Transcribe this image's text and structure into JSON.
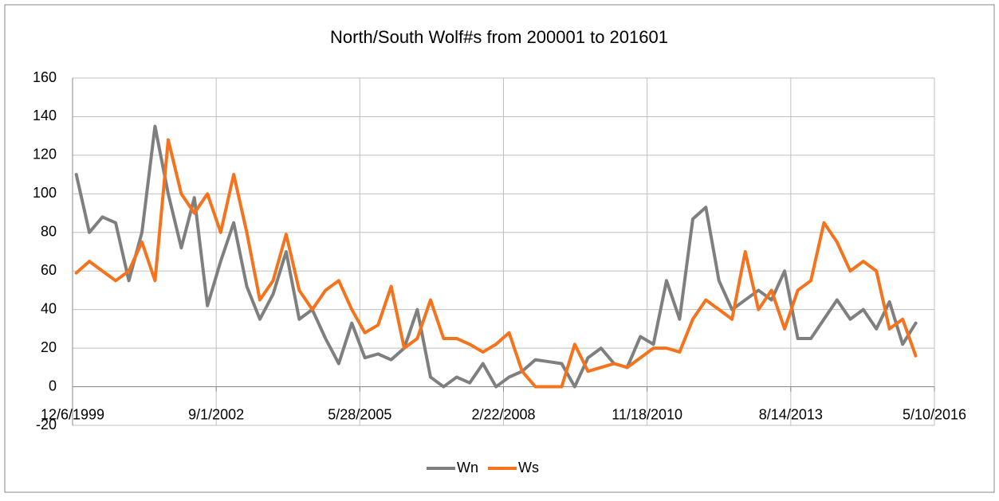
{
  "chart_data": {
    "type": "line",
    "title": "North/South Wolf#s from 200001 to 201601",
    "x": [
      36526,
      36617,
      36708,
      36800,
      36892,
      36983,
      37074,
      37166,
      37257,
      37348,
      37439,
      37531,
      37622,
      37713,
      37804,
      37896,
      37987,
      38078,
      38169,
      38261,
      38353,
      38444,
      38535,
      38627,
      38718,
      38809,
      38900,
      38992,
      39083,
      39174,
      39265,
      39357,
      39448,
      39539,
      39630,
      39722,
      39814,
      39905,
      39996,
      40088,
      40179,
      40270,
      40361,
      40453,
      40544,
      40635,
      40726,
      40818,
      40909,
      41000,
      41091,
      41183,
      41275,
      41366,
      41457,
      41549,
      41640,
      41731,
      41822,
      41914,
      42005,
      42096,
      42187,
      42279,
      42370
    ],
    "series": [
      {
        "name": "Wn",
        "color": "#7f7f7f",
        "values": [
          110,
          80,
          88,
          85,
          55,
          80,
          135,
          100,
          72,
          98,
          42,
          65,
          85,
          52,
          35,
          48,
          70,
          35,
          40,
          25,
          12,
          33,
          15,
          17,
          14,
          20,
          40,
          5,
          0,
          5,
          2,
          12,
          0,
          5,
          8,
          14,
          13,
          12,
          0,
          15,
          20,
          12,
          10,
          26,
          22,
          55,
          35,
          87,
          93,
          55,
          40,
          45,
          50,
          45,
          60,
          25,
          25,
          35,
          45,
          35,
          40,
          30,
          44,
          22,
          33
        ]
      },
      {
        "name": "Ws",
        "color": "#f5731c",
        "values": [
          59,
          65,
          60,
          55,
          60,
          75,
          55,
          128,
          100,
          90,
          100,
          80,
          110,
          80,
          45,
          55,
          79,
          50,
          40,
          50,
          55,
          40,
          28,
          32,
          52,
          20,
          25,
          45,
          25,
          25,
          22,
          18,
          22,
          28,
          8,
          0,
          0,
          0,
          22,
          8,
          10,
          12,
          10,
          15,
          20,
          20,
          18,
          35,
          45,
          40,
          35,
          70,
          40,
          50,
          30,
          50,
          55,
          85,
          75,
          60,
          65,
          60,
          30,
          35,
          16
        ]
      }
    ],
    "xlim": [
      36500,
      42500
    ],
    "xticks": [
      {
        "value": 36500,
        "label": "12/6/1999"
      },
      {
        "value": 37500,
        "label": "9/1/2002"
      },
      {
        "value": 38500,
        "label": "5/28/2005"
      },
      {
        "value": 39500,
        "label": "2/22/2008"
      },
      {
        "value": 40500,
        "label": "11/18/2010"
      },
      {
        "value": 41500,
        "label": "8/14/2013"
      },
      {
        "value": 42500,
        "label": "5/10/2016"
      }
    ],
    "ylim": [
      -20,
      160
    ],
    "yticks": [
      -20,
      0,
      20,
      40,
      60,
      80,
      100,
      120,
      140,
      160
    ],
    "grid": true,
    "legend": "bottom"
  }
}
